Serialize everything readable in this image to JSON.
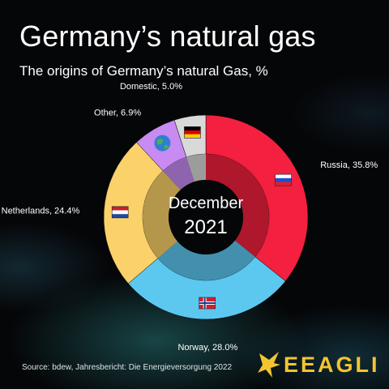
{
  "title": "Germany’s natural gas",
  "subtitle": "The origins of Germany’s natural Gas, %",
  "source": "Source: bdew, Jahresbericht: Die Energieversorgung 2022",
  "brand": "EEAGLI",
  "chart_data": {
    "type": "pie",
    "title": "Germany’s natural gas",
    "subtitle": "The origins of Germany’s natural Gas, %",
    "center_label": [
      "December",
      "2021"
    ],
    "categories": [
      "Russia",
      "Norway",
      "Netherlands",
      "Other",
      "Domestic"
    ],
    "values": [
      35.8,
      28.0,
      24.4,
      6.9,
      5.0
    ],
    "labels": [
      "Russia, 35.8%",
      "Norway, 28.0%",
      "Netherlands, 24.4%",
      "Other, 6.9%",
      "Domestic, 5.0%"
    ],
    "colors": [
      "#f3203f",
      "#5cc8f0",
      "#fbd26a",
      "#c78bf2",
      "#d9d9d9"
    ],
    "icons": [
      "russia-flag",
      "norway-flag",
      "netherlands-flag",
      "globe",
      "germany-flag"
    ],
    "start": "12 o'clock",
    "direction": "clockwise",
    "legend": "none"
  }
}
